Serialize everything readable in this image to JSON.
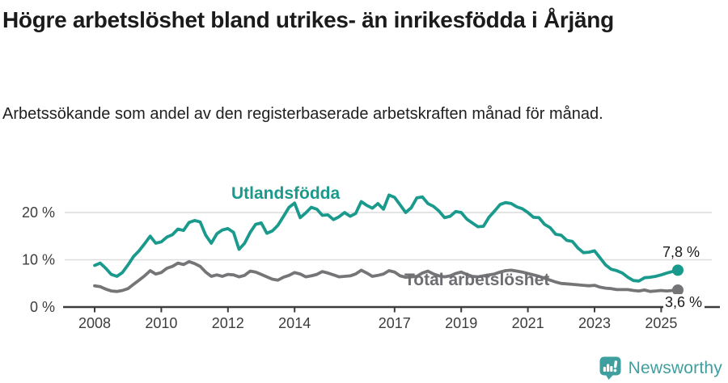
{
  "page": {
    "title": "Högre arbetslöshet bland utrikes- än inrikesfödda i Årjäng",
    "subtitle": "Arbetssökande som andel av den registerbaserade arbetskraften månad för månad."
  },
  "branding": {
    "logo_text": "Newsworthy",
    "logo_color": "#3f9f9f"
  },
  "chart_data": {
    "type": "line",
    "title": "Högre arbetslöshet bland utrikes- än inrikesfödda i Årjäng",
    "subtitle": "Arbetssökande som andel av den registerbaserade arbetskraften månad för månad.",
    "unit": "%",
    "ylim": [
      0,
      25
    ],
    "x_range_years": [
      2008,
      2025.5
    ],
    "grid": true,
    "grid_color": "#dcdcdc",
    "axis_color": "#3c3c3c",
    "y_ticks": [
      {
        "value": 0,
        "label": "0 %"
      },
      {
        "value": 10,
        "label": "10 %"
      },
      {
        "value": 20,
        "label": "20 %"
      }
    ],
    "x_ticks": [
      {
        "year": 2008,
        "label": "2008"
      },
      {
        "year": 2010,
        "label": "2010"
      },
      {
        "year": 2012,
        "label": "2012"
      },
      {
        "year": 2014,
        "label": "2014"
      },
      {
        "year": 2017,
        "label": "2017"
      },
      {
        "year": 2019,
        "label": "2019"
      },
      {
        "year": 2021,
        "label": "2021"
      },
      {
        "year": 2023,
        "label": "2023"
      },
      {
        "year": 2025,
        "label": "2025"
      }
    ],
    "series": [
      {
        "id": "utlandsfodda",
        "name": "Utlandsfödda",
        "color": "#1a9a8c",
        "end_label": "7,8 %",
        "end_value": 7.8,
        "start_year": 2008.0,
        "step_years": 0.166667,
        "values": [
          8.8,
          9.3,
          8.2,
          6.9,
          6.5,
          7.3,
          8.9,
          10.7,
          11.9,
          13.4,
          15.0,
          13.5,
          13.8,
          14.8,
          15.3,
          16.5,
          16.2,
          17.9,
          18.3,
          18.0,
          15.2,
          13.5,
          15.5,
          16.3,
          16.6,
          15.8,
          12.2,
          13.5,
          15.8,
          17.5,
          17.8,
          15.6,
          16.1,
          17.3,
          19.2,
          21.1,
          22.0,
          18.9,
          19.9,
          21.1,
          20.7,
          19.4,
          19.5,
          18.5,
          19.1,
          20.0,
          19.2,
          19.8,
          22.3,
          21.5,
          20.9,
          21.9,
          20.7,
          23.7,
          23.2,
          21.6,
          20.0,
          21.0,
          23.1,
          23.3,
          21.9,
          21.3,
          20.3,
          18.9,
          19.2,
          20.2,
          20.0,
          18.6,
          17.8,
          17.0,
          17.1,
          19.0,
          20.3,
          21.7,
          22.1,
          21.9,
          21.2,
          20.8,
          20.0,
          19.0,
          18.9,
          17.5,
          16.8,
          15.4,
          15.2,
          14.1,
          13.9,
          12.5,
          11.5,
          11.6,
          11.9,
          10.4,
          8.9,
          8.0,
          7.7,
          7.2,
          6.3,
          5.6,
          5.5,
          6.2,
          6.3,
          6.5,
          6.8,
          7.2,
          7.5,
          7.8
        ]
      },
      {
        "id": "total-arbetsloshet",
        "name": "Total arbetslöshet",
        "color": "#757578",
        "end_label": "3,6 %",
        "end_value": 3.6,
        "start_year": 2008.0,
        "step_years": 0.166667,
        "values": [
          4.5,
          4.3,
          3.8,
          3.4,
          3.3,
          3.5,
          3.9,
          4.8,
          5.7,
          6.6,
          7.7,
          7.0,
          7.3,
          8.2,
          8.6,
          9.3,
          9.0,
          9.6,
          9.2,
          8.6,
          7.4,
          6.5,
          6.8,
          6.5,
          6.9,
          6.8,
          6.4,
          6.7,
          7.6,
          7.4,
          6.9,
          6.4,
          5.9,
          5.7,
          6.3,
          6.7,
          7.3,
          7.0,
          6.4,
          6.6,
          6.9,
          7.5,
          7.2,
          6.8,
          6.4,
          6.5,
          6.6,
          7.0,
          7.8,
          7.2,
          6.5,
          6.7,
          7.0,
          7.7,
          7.4,
          6.6,
          6.3,
          6.4,
          6.5,
          7.2,
          7.6,
          7.0,
          6.6,
          6.4,
          6.6,
          7.1,
          7.4,
          6.9,
          6.5,
          6.4,
          6.6,
          6.8,
          7.0,
          7.4,
          7.7,
          7.8,
          7.6,
          7.4,
          7.1,
          6.8,
          6.5,
          6.1,
          5.7,
          5.3,
          5.0,
          4.9,
          4.8,
          4.7,
          4.6,
          4.5,
          4.6,
          4.2,
          4.0,
          3.9,
          3.7,
          3.7,
          3.7,
          3.5,
          3.4,
          3.6,
          3.3,
          3.4,
          3.5,
          3.4,
          3.5,
          3.6
        ]
      }
    ],
    "legend_position": "inline-labels"
  }
}
